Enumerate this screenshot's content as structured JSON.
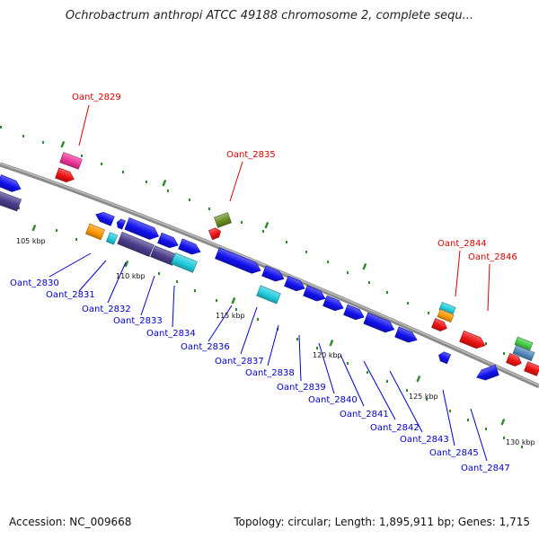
{
  "title": "Ochrobactrum anthropi ATCC 49188 chromosome 2, complete sequ...",
  "footer": {
    "accession": "Accession: NC_009668",
    "summary": "Topology: circular; Length: 1,895,911 bp; Genes: 1,715"
  },
  "colors": {
    "backbone": "#8a8a8a",
    "tick": "#2e8b2e",
    "upper_label": "#dd0000",
    "lower_label": "#0000cc",
    "gene_blue": "#1111ee",
    "gene_purple": "#4a3c8c",
    "gene_cyan": "#22ccdd",
    "gene_red": "#ee1111",
    "gene_pink": "#ee3399",
    "gene_orange": "#ff9900",
    "gene_olive": "#6b8e23",
    "gene_green": "#44cc44",
    "gene_steel": "#5588bb"
  },
  "kbp_labels": [
    "105 kbp",
    "110 kbp",
    "115 kbp",
    "120 kbp",
    "125 kbp",
    "130 kbp"
  ],
  "upper_gene_labels": [
    "Oant_2829",
    "Oant_2835",
    "Oant_2844",
    "Oant_2846"
  ],
  "lower_gene_labels": [
    "Oant_2830",
    "Oant_2831",
    "Oant_2832",
    "Oant_2833",
    "Oant_2834",
    "Oant_2836",
    "Oant_2837",
    "Oant_2838",
    "Oant_2839",
    "Oant_2840",
    "Oant_2841",
    "Oant_2842",
    "Oant_2843",
    "Oant_2845",
    "Oant_2847"
  ]
}
